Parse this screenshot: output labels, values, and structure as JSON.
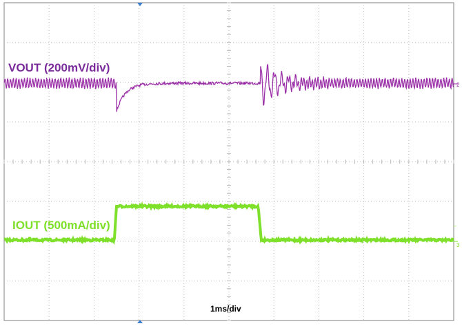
{
  "chart_data": {
    "type": "line",
    "title": "",
    "xlabel": "1ms/div",
    "ylabel": "",
    "grid": true,
    "x_divisions": 10,
    "y_divisions": 8,
    "series": [
      {
        "name": "VOUT (200mV/div)",
        "color": "#9b2fa8",
        "channel": "2",
        "units": "divisions from reference",
        "events": [
          {
            "t_div": 0.0,
            "level": 0.0,
            "note": "steady with ripple"
          },
          {
            "t_div": 2.5,
            "level": -0.7,
            "note": "undershoot at load step up"
          },
          {
            "t_div": 5.7,
            "level": 0.55,
            "note": "overshoot at load step down"
          },
          {
            "t_div": 10.0,
            "level": 0.0,
            "note": "steady with ripple"
          }
        ]
      },
      {
        "name": "IOUT (500mA/div)",
        "color": "#7ee02a",
        "channel": "3",
        "units": "divisions from reference",
        "events": [
          {
            "t_div": 0.0,
            "level": 0.0
          },
          {
            "t_div": 2.45,
            "level": 0.0
          },
          {
            "t_div": 2.5,
            "level": 0.85
          },
          {
            "t_div": 5.65,
            "level": 0.85
          },
          {
            "t_div": 5.72,
            "level": 0.0
          },
          {
            "t_div": 10.0,
            "level": 0.0
          }
        ]
      }
    ]
  },
  "labels": {
    "vout": "VOUT (200mV/div)",
    "iout": "IOUT (500mA/div)",
    "timebase": "1ms/div",
    "ch2_marker": "2",
    "ch3_marker": "3"
  },
  "colors": {
    "vout": "#9b2fa8",
    "vout_label": "#7a2a9a",
    "iout": "#7ee02a",
    "grid": "#b9b9b9",
    "trigger_marker": "#3b7fd0"
  }
}
